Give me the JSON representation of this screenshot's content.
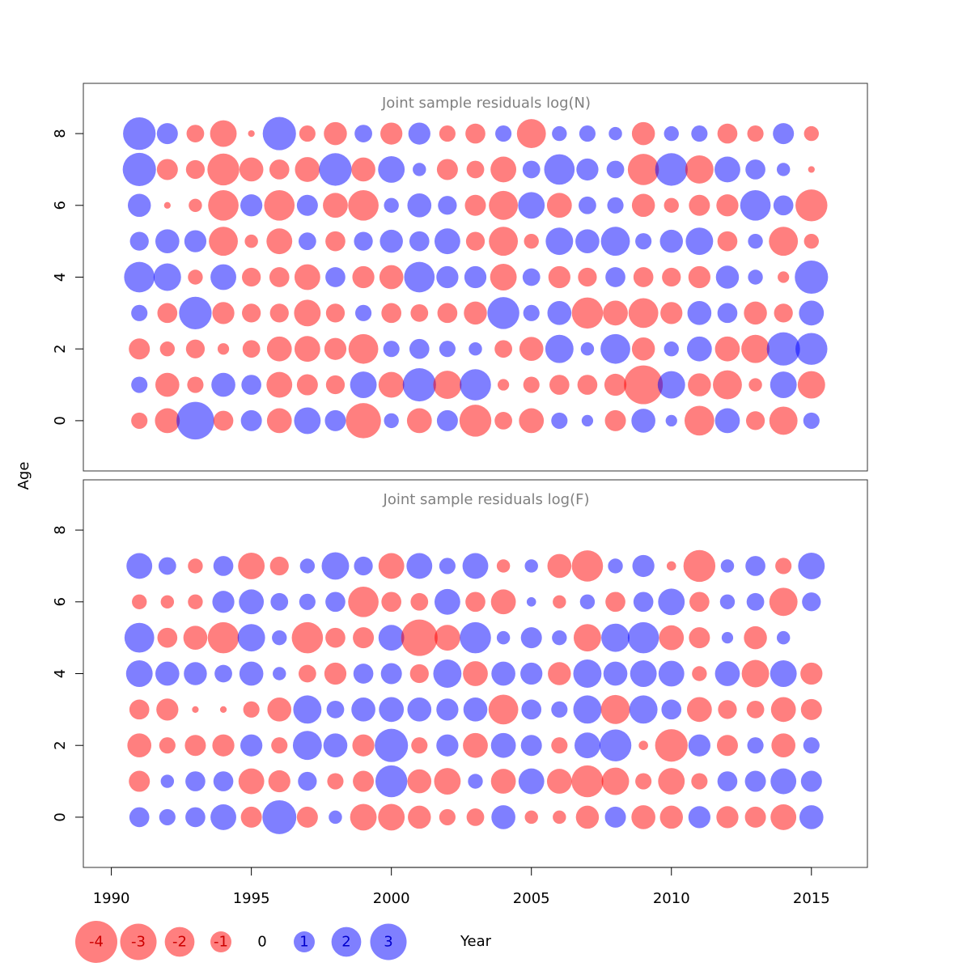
{
  "chart_data": [
    {
      "type": "scatter",
      "title": "Joint sample residuals log(N)",
      "xlabel": "Year",
      "ylabel": "Age",
      "xlim": [
        1989,
        2017
      ],
      "ylim": [
        -1.4,
        9.4
      ],
      "x_ticks": [
        1990,
        1995,
        2000,
        2005,
        2010,
        2015
      ],
      "y_ticks": [
        0,
        2,
        4,
        6,
        8
      ],
      "years": [
        1991,
        1992,
        1993,
        1994,
        1995,
        1996,
        1997,
        1998,
        1999,
        2000,
        2001,
        2002,
        2003,
        2004,
        2005,
        2006,
        2007,
        2008,
        2009,
        2010,
        2011,
        2012,
        2013,
        2014,
        2015
      ],
      "ages": [
        0,
        1,
        2,
        3,
        4,
        5,
        6,
        7,
        8
      ],
      "residuals": [
        [
          -0.6,
          -1.4,
          3.2,
          -0.9,
          1.0,
          -1.4,
          1.6,
          1.0,
          -2.8,
          0.5,
          -1.4,
          1.0,
          -2.3,
          -0.7,
          -1.4,
          0.6,
          0.3,
          -1.0,
          1.3,
          0.3,
          -2.0,
          1.4,
          -0.8,
          -1.8,
          0.6
        ],
        [
          0.6,
          -1.3,
          -0.6,
          1.3,
          0.9,
          -1.5,
          -1.0,
          -0.8,
          1.6,
          -1.5,
          2.5,
          -1.8,
          2.2,
          -0.3,
          -0.6,
          -0.9,
          -0.9,
          -1.1,
          -3.4,
          1.7,
          -1.2,
          -1.9,
          -0.4,
          1.6,
          -1.7
        ],
        [
          -1.0,
          -0.5,
          -0.8,
          -0.3,
          -0.7,
          -1.4,
          -1.5,
          -1.1,
          -2.0,
          0.6,
          0.9,
          0.6,
          0.4,
          -0.7,
          -1.3,
          1.8,
          0.4,
          2.0,
          -1.2,
          0.5,
          1.4,
          -1.4,
          -1.8,
          2.5,
          2.3
        ],
        [
          0.6,
          -0.9,
          2.4,
          -1.1,
          -0.8,
          -0.8,
          -1.6,
          -0.8,
          0.6,
          -0.9,
          -0.7,
          -0.9,
          -1.2,
          2.3,
          0.6,
          1.3,
          -2.2,
          -1.4,
          -2.0,
          -1.1,
          1.3,
          0.9,
          -1.2,
          -0.8,
          1.4
        ],
        [
          2.1,
          1.7,
          -0.5,
          1.5,
          -0.8,
          -0.9,
          -1.5,
          0.9,
          -1.1,
          -1.3,
          2.1,
          1.1,
          1.1,
          -1.6,
          0.7,
          -1.1,
          -0.8,
          0.9,
          -0.9,
          -0.8,
          -1.1,
          1.2,
          0.5,
          -0.3,
          2.5
        ],
        [
          0.8,
          1.3,
          1.1,
          -1.9,
          -0.4,
          -1.5,
          0.7,
          -0.9,
          0.8,
          1.2,
          0.9,
          1.5,
          -0.8,
          -1.9,
          -0.5,
          1.7,
          1.3,
          1.9,
          0.6,
          1.2,
          1.7,
          -0.9,
          0.5,
          -1.9,
          -0.5
        ],
        [
          1.2,
          -0.1,
          -0.4,
          -2.1,
          1.1,
          -2.1,
          1.0,
          -1.4,
          -2.1,
          0.5,
          1.3,
          0.8,
          -1.0,
          -1.9,
          1.6,
          -1.4,
          0.7,
          0.6,
          -1.2,
          -0.5,
          -1.0,
          -1.1,
          2.1,
          0.9,
          -2.3
        ],
        [
          2.5,
          -1.0,
          -0.8,
          -2.3,
          -1.3,
          -0.9,
          -1.4,
          2.4,
          -1.3,
          1.6,
          0.4,
          -1.0,
          -0.7,
          -1.5,
          0.7,
          2.1,
          1.1,
          0.7,
          -2.2,
          2.4,
          -1.8,
          1.5,
          0.9,
          0.4,
          -0.1
        ],
        [
          2.4,
          1.0,
          -0.7,
          -1.6,
          -0.1,
          2.5,
          -0.6,
          -1.2,
          0.7,
          -1.1,
          1.1,
          -0.6,
          -0.9,
          0.6,
          -1.9,
          0.5,
          0.6,
          0.4,
          -1.2,
          0.5,
          0.6,
          -0.9,
          -0.6,
          1.0,
          -0.5
        ]
      ]
    },
    {
      "type": "scatter",
      "title": "Joint sample residuals log(F)",
      "xlabel": "Year",
      "ylabel": "Age",
      "xlim": [
        1989,
        2017
      ],
      "ylim": [
        -1.4,
        9.4
      ],
      "x_ticks": [
        1990,
        1995,
        2000,
        2005,
        2010,
        2015
      ],
      "y_ticks": [
        0,
        2,
        4,
        6,
        8
      ],
      "years": [
        1991,
        1992,
        1993,
        1994,
        1995,
        1996,
        1997,
        1998,
        1999,
        2000,
        2001,
        2002,
        2003,
        2004,
        2005,
        2006,
        2007,
        2008,
        2009,
        2010,
        2011,
        2012,
        2013,
        2014,
        2015
      ],
      "ages": [
        0,
        1,
        2,
        3,
        4,
        5,
        6,
        7
      ],
      "residuals": [
        [
          0.9,
          0.6,
          0.9,
          1.5,
          -1.0,
          2.6,
          -1.0,
          0.4,
          -1.6,
          -1.6,
          -1.2,
          -0.6,
          -0.7,
          1.3,
          -0.4,
          -0.4,
          -1.2,
          1.0,
          -1.3,
          -1.2,
          1.1,
          -1.1,
          -1.0,
          -1.5,
          1.3
        ],
        [
          -1.0,
          0.4,
          0.9,
          0.9,
          -1.5,
          -1.1,
          0.8,
          -0.6,
          -1.0,
          2.3,
          -1.3,
          -1.6,
          0.5,
          -1.4,
          1.5,
          -1.4,
          -2.3,
          -1.7,
          -0.6,
          -1.6,
          -0.6,
          0.9,
          1.0,
          1.5,
          1.0
        ],
        [
          -1.3,
          -0.6,
          -1.0,
          -1.1,
          1.1,
          -0.6,
          1.9,
          1.3,
          -1.1,
          2.5,
          -0.6,
          1.1,
          -1.4,
          1.4,
          1.0,
          -0.6,
          1.5,
          2.3,
          -0.2,
          -2.4,
          1.1,
          -1.0,
          0.6,
          -1.3,
          0.6
        ],
        [
          -0.9,
          -1.1,
          -0.1,
          -0.1,
          -0.6,
          -1.3,
          1.8,
          0.7,
          1.3,
          1.4,
          1.3,
          1.1,
          1.3,
          -2.0,
          0.9,
          0.6,
          1.8,
          -1.9,
          1.8,
          0.9,
          -1.4,
          -0.8,
          -0.7,
          -1.4,
          -1.0
        ],
        [
          1.6,
          1.3,
          1.2,
          0.7,
          1.3,
          0.4,
          -0.7,
          -1.1,
          0.9,
          1.0,
          -0.8,
          1.8,
          -1.4,
          1.3,
          1.1,
          -1.2,
          1.8,
          1.3,
          1.6,
          1.5,
          -0.5,
          1.4,
          -1.7,
          1.6,
          -1.1
        ],
        [
          2.0,
          -0.9,
          -1.3,
          -2.2,
          1.7,
          0.5,
          -2.2,
          -0.9,
          -1.0,
          1.5,
          -3.0,
          -1.5,
          2.2,
          0.4,
          1.0,
          0.5,
          -1.7,
          1.8,
          2.2,
          -1.4,
          -1.0,
          0.3,
          -1.2,
          0.4,
          0
        ],
        [
          -0.5,
          -0.4,
          -0.5,
          1.1,
          1.4,
          0.7,
          0.6,
          0.9,
          -2.1,
          -0.9,
          -0.7,
          1.5,
          -0.9,
          -1.4,
          0.2,
          -0.4,
          0.5,
          -0.9,
          0.9,
          1.6,
          -0.9,
          0.5,
          0.7,
          -1.8,
          0.8
        ],
        [
          1.5,
          0.7,
          -0.5,
          0.9,
          -1.6,
          -0.8,
          0.5,
          1.7,
          0.8,
          -1.5,
          1.5,
          0.6,
          1.5,
          -0.4,
          0.4,
          -1.3,
          -2.2,
          0.5,
          1.1,
          -0.2,
          -2.3,
          0.4,
          0.9,
          -0.6,
          1.6
        ]
      ]
    }
  ],
  "legend": {
    "items": [
      {
        "label": "-4",
        "value": -4
      },
      {
        "label": "-3",
        "value": -3
      },
      {
        "label": "-2",
        "value": -2
      },
      {
        "label": "-1",
        "value": -1
      },
      {
        "label": "0",
        "value": 0
      },
      {
        "label": "1",
        "value": 1
      },
      {
        "label": "2",
        "value": 2
      },
      {
        "label": "3",
        "value": 3
      }
    ]
  },
  "colors": {
    "negative_fill": "#ff0000",
    "positive_fill": "#0000ff",
    "negative_text": "#cc0000",
    "positive_text": "#0000cc",
    "bubble_opacity": 0.5,
    "title_color": "#808080"
  }
}
